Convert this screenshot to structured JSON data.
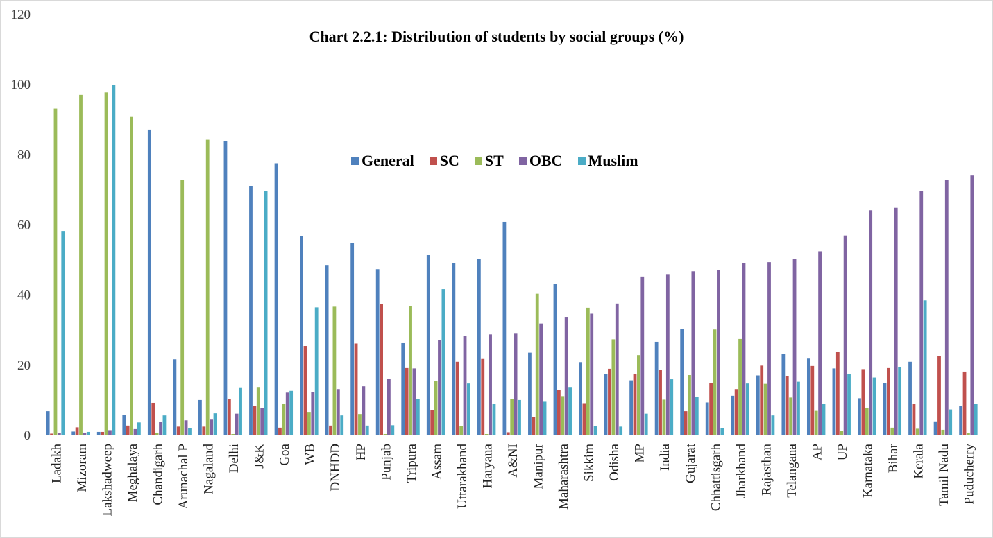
{
  "colors": {
    "General": "#4f81bd",
    "SC": "#c0504d",
    "ST": "#9bbb59",
    "OBC": "#8064a2",
    "Muslim": "#4bacc6"
  },
  "chart_data": {
    "type": "bar",
    "title": "Chart 2.2.1: Distribution of students by social groups (%)",
    "xlabel": "",
    "ylabel": "",
    "ylim": [
      0,
      120
    ],
    "yticks": [
      0,
      20,
      40,
      60,
      80,
      100,
      120
    ],
    "grid": false,
    "legend_position": "center",
    "categories": [
      "Ladakh",
      "Mizoram",
      "Lakshadweep",
      "Meghalaya",
      "Chandigarh",
      "Arunachal P",
      "Nagaland",
      "Delhi",
      "J&K",
      "Goa",
      "WB",
      "DNHDD",
      "HP",
      "Punjab",
      "Tripura",
      "Assam",
      "Uttarakhand",
      "Haryana",
      "A&NI",
      "Manipur",
      "Maharashtra",
      "Sikkim",
      "Odisha",
      "MP",
      "India",
      "Gujarat",
      "Chhattisgarh",
      "Jharkhand",
      "Rajasthan",
      "Telangana",
      "AP",
      "UP",
      "Karnataka",
      "Bihar",
      "Kerala",
      "Tamil Nadu",
      "Puducherry"
    ],
    "series": [
      {
        "name": "General",
        "values": [
          6.7,
          0.9,
          0.8,
          5.6,
          87,
          21.5,
          9.9,
          83.8,
          70.8,
          77.4,
          56.6,
          48.4,
          54.7,
          47.2,
          26.1,
          51.2,
          48.9,
          50.2,
          60.7,
          23.4,
          43,
          20.7,
          17.3,
          15.5,
          26.5,
          30.2,
          9.2,
          11.1,
          16.9,
          23,
          21.7,
          18.9,
          10.4,
          14.8,
          20.8,
          3.8,
          8.2
        ]
      },
      {
        "name": "SC",
        "values": [
          0.3,
          2.1,
          0.8,
          2.6,
          9.1,
          2.3,
          2.3,
          10.1,
          8.2,
          2,
          25.3,
          2.6,
          26,
          37.2,
          19,
          7,
          20.8,
          21.6,
          0.7,
          5.1,
          12.7,
          9,
          18.8,
          17.4,
          18.4,
          6.7,
          14.7,
          13,
          19.7,
          16.8,
          19.6,
          23.6,
          18.7,
          19,
          8.8,
          22.5,
          18
        ]
      },
      {
        "name": "ST",
        "values": [
          93,
          96.9,
          97.6,
          90.6,
          0.4,
          72.7,
          84.1,
          0.2,
          13.6,
          8.9,
          6.5,
          36.5,
          5.9,
          0.2,
          36.6,
          15.4,
          2.5,
          0.2,
          10.1,
          40.2,
          11,
          36.2,
          27.2,
          22.7,
          10,
          17,
          30,
          27.3,
          14.5,
          10.6,
          6.8,
          1.1,
          7.6,
          2,
          1.7,
          1.4,
          0.5
        ]
      },
      {
        "name": "OBC",
        "values": [
          0.4,
          0.6,
          1.3,
          1.6,
          3.7,
          4.1,
          4.3,
          6,
          7.7,
          12,
          12.2,
          13,
          13.8,
          15.9,
          18.9,
          26.9,
          28.1,
          28.6,
          28.8,
          31.7,
          33.6,
          34.5,
          37.4,
          45.1,
          45.8,
          46.6,
          46.9,
          48.9,
          49.2,
          50.1,
          52.3,
          56.8,
          64,
          64.7,
          69.4,
          72.7,
          73.9
        ]
      },
      {
        "name": "Muslim",
        "values": [
          58.1,
          0.8,
          99.7,
          3.5,
          5.5,
          1.9,
          6.1,
          13.5,
          69.4,
          12.5,
          36.3,
          5.5,
          2.6,
          2.7,
          10.2,
          41.5,
          14.6,
          8.7,
          9.9,
          9.4,
          13.6,
          2.5,
          2.3,
          6,
          15.8,
          10.7,
          1.9,
          14.6,
          5.5,
          15.1,
          8.7,
          17.2,
          16.3,
          19.3,
          38.3,
          7.2,
          8.7
        ]
      }
    ]
  }
}
